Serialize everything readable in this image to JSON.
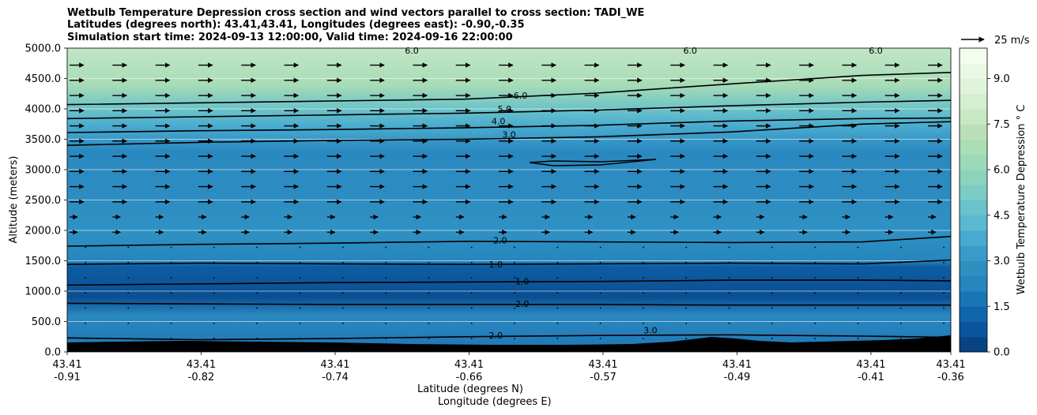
{
  "chart_data": {
    "type": "filled-contour cross section with wind vectors",
    "title_lines": [
      "Wetbulb Temperature Depression cross section and wind vectors parallel to cross section: TADI_WE",
      "Latitudes (degrees north): 43.41,43.41, Longitudes (degrees east): -0.90,-0.35",
      "Simulation start time: 2024-09-13 12:00:00, Valid time: 2024-09-16 22:00:00"
    ],
    "ylabel": "Altitude (meters)",
    "xlabel_lat": "Latitude (degrees N)",
    "xlabel_lon": "Longitude (degrees E)",
    "ylim": [
      0,
      5000
    ],
    "yticks": [
      "0.0",
      "500.0",
      "1000.0",
      "1500.0",
      "2000.0",
      "2500.0",
      "3000.0",
      "3500.0",
      "4000.0",
      "4500.0",
      "5000.0"
    ],
    "ytick_values": [
      0,
      500,
      1000,
      1500,
      2000,
      2500,
      3000,
      3500,
      4000,
      4500,
      5000
    ],
    "xticks": [
      {
        "pos": 0.0,
        "lat": "43.41",
        "lon": "-0.91"
      },
      {
        "pos": 0.1516,
        "lat": "43.41",
        "lon": "-0.82"
      },
      {
        "pos": 0.3032,
        "lat": "43.41",
        "lon": "-0.74"
      },
      {
        "pos": 0.4548,
        "lat": "43.41",
        "lon": "-0.66"
      },
      {
        "pos": 0.6064,
        "lat": "43.41",
        "lon": "-0.57"
      },
      {
        "pos": 0.758,
        "lat": "43.41",
        "lon": "-0.49"
      },
      {
        "pos": 0.9096,
        "lat": "43.41",
        "lon": "-0.41"
      },
      {
        "pos": 1.0,
        "lat": "43.41",
        "lon": "-0.36"
      }
    ],
    "colorbar": {
      "label": "Wetbulb Temperature Depression $^\\circ$C",
      "label_display": "Wetbulb Temperature Depression ° C",
      "range": [
        0,
        10
      ],
      "ticks": [
        "0.0",
        "1.5",
        "3.0",
        "4.5",
        "6.0",
        "7.5",
        "9.0"
      ],
      "tick_values": [
        0,
        1.5,
        3,
        4.5,
        6,
        7.5,
        9
      ],
      "level_colors": [
        "#084384",
        "#0b559f",
        "#1066ac",
        "#1a75b5",
        "#2686bd",
        "#2f8fc1",
        "#3a9bc8",
        "#48aacf",
        "#5ab8d1",
        "#6ac2ca",
        "#7accc4",
        "#8cd3bc",
        "#9dd9b8",
        "#acdeb6",
        "#badfb8",
        "#c7e8c3",
        "#d4eece",
        "#e0f3db",
        "#ebf7e5",
        "#f4fbef"
      ]
    },
    "wind_key": {
      "label": "25 m/s",
      "speed": 25
    },
    "contours": [
      {
        "level": 2.0,
        "label": "2.0",
        "altitudes": [
          230,
          200,
          220,
          250,
          270,
          280,
          260,
          240
        ]
      },
      {
        "level": 2.0,
        "label": "2.0",
        "altitudes": [
          800,
          790,
          780,
          780,
          780,
          770,
          770,
          770
        ]
      },
      {
        "level": 1.0,
        "label": "1.0",
        "altitudes": [
          1100,
          1120,
          1140,
          1150,
          1160,
          1180,
          1180,
          1170
        ]
      },
      {
        "level": 1.0,
        "label": "1.0",
        "altitudes": [
          1440,
          1460,
          1450,
          1440,
          1450,
          1460,
          1450,
          1510
        ]
      },
      {
        "level": 2.0,
        "label": "2.0",
        "altitudes": [
          1740,
          1770,
          1790,
          1820,
          1810,
          1800,
          1810,
          1900
        ]
      },
      {
        "level": 3.0,
        "label": "3.0",
        "altitudes": [
          3400,
          3450,
          3480,
          3500,
          3540,
          3620,
          3750,
          3790
        ]
      },
      {
        "level": 4.0,
        "label": "4.0",
        "altitudes": [
          3610,
          3640,
          3660,
          3690,
          3730,
          3800,
          3840,
          3850
        ]
      },
      {
        "level": 5.0,
        "label": "5.0",
        "altitudes": [
          3840,
          3870,
          3900,
          3930,
          3980,
          4050,
          4110,
          4140
        ]
      },
      {
        "level": 6.0,
        "label": "6.0",
        "altitudes": [
          4070,
          4100,
          4130,
          4160,
          4260,
          4410,
          4550,
          4600
        ]
      }
    ],
    "contour_labels": [
      {
        "text": "2.0",
        "x": 0.49,
        "alt": 1840
      },
      {
        "text": "1.0",
        "x": 0.485,
        "alt": 1440
      },
      {
        "text": "1.0",
        "x": 0.515,
        "alt": 1160
      },
      {
        "text": "2.0",
        "x": 0.515,
        "alt": 790
      },
      {
        "text": "2.0",
        "x": 0.485,
        "alt": 270
      },
      {
        "text": "3.0",
        "x": 0.5,
        "alt": 3580
      },
      {
        "text": "4.0",
        "x": 0.488,
        "alt": 3800
      },
      {
        "text": "5.0",
        "x": 0.495,
        "alt": 4000
      },
      {
        "text": "6.0",
        "x": 0.513,
        "alt": 4220
      },
      {
        "text": "3.0",
        "x": 0.66,
        "alt": 360
      },
      {
        "text": "6.0",
        "x": 0.39,
        "alt": 4960
      },
      {
        "text": "6.0",
        "x": 0.705,
        "alt": 4960
      },
      {
        "text": "6.0",
        "x": 0.915,
        "alt": 4960
      }
    ]
  }
}
